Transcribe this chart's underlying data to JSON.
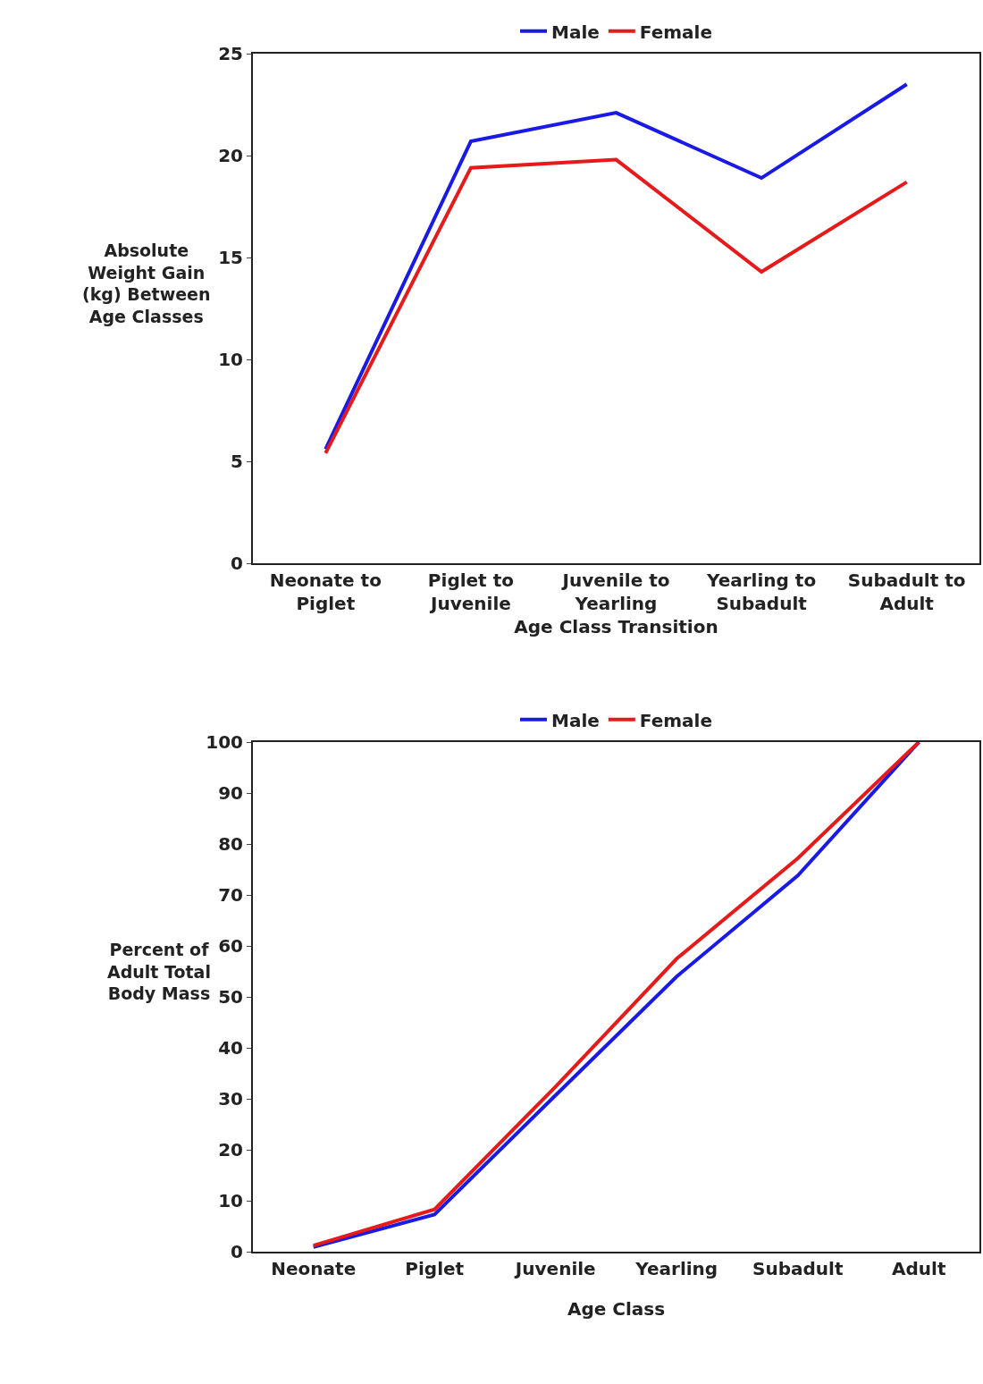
{
  "chart_data": [
    {
      "type": "line",
      "xlabel": "Age Class Transition",
      "ylabel": "Absolute Weight Gain (kg) Between Age Classes",
      "categories": [
        "Neonate to Piglet",
        "Piglet to Juvenile",
        "Juvenile to Yearling",
        "Yearling to Subadult",
        "Subadult to Adult"
      ],
      "series": [
        {
          "name": "Male",
          "color": "#1a1ae6",
          "values": [
            5.6,
            20.7,
            22.1,
            18.9,
            23.5
          ]
        },
        {
          "name": "Female",
          "color": "#e61a1a",
          "values": [
            5.4,
            19.4,
            19.8,
            14.3,
            18.7
          ]
        }
      ],
      "ylim": [
        0,
        25
      ],
      "yticks": [
        0,
        5,
        10,
        15,
        20,
        25
      ],
      "grid": false,
      "legend": "top",
      "marker": "none",
      "line_style": "solid"
    },
    {
      "type": "line",
      "xlabel": "Age Class",
      "ylabel": "Percent of Adult Total Body Mass",
      "categories": [
        "Neonate",
        "Piglet",
        "Juvenile",
        "Yearling",
        "Subadult",
        "Adult"
      ],
      "series": [
        {
          "name": "Male",
          "color": "#1a1ae6",
          "values": [
            0.9,
            7.3,
            30.7,
            54,
            73.8,
            100
          ]
        },
        {
          "name": "Female",
          "color": "#e61a1a",
          "values": [
            1.2,
            8.3,
            32.4,
            57.5,
            77.2,
            100
          ]
        }
      ],
      "ylim": [
        0,
        100
      ],
      "yticks": [
        0,
        10,
        20,
        30,
        40,
        50,
        60,
        70,
        80,
        90,
        100
      ],
      "grid": false,
      "legend": "top",
      "marker": "none",
      "line_style": "solid"
    }
  ]
}
